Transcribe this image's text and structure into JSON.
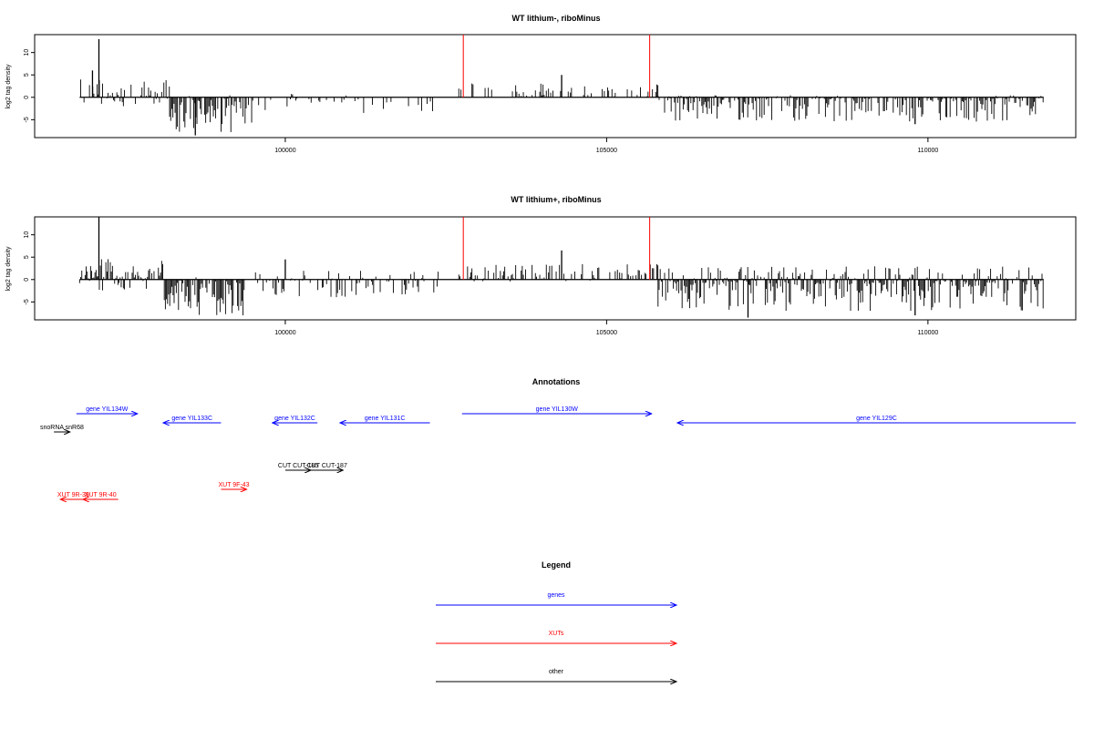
{
  "panels": [
    {
      "title": "WT lithium-, riboMinus",
      "ylabel": "log2 tag density",
      "yticks": [
        "10",
        "5",
        "0",
        "-5"
      ],
      "ylim": [
        -9,
        14
      ],
      "xticks": [
        "100000",
        "105000",
        "110000"
      ],
      "xlim": [
        96100,
        112300
      ],
      "segments": [
        {
          "from": 96800,
          "to": 98200,
          "max": 4,
          "min": -2,
          "density": 0.55
        },
        {
          "from": 98200,
          "to": 99500,
          "max": 0.5,
          "min": -8,
          "density": 0.9
        },
        {
          "from": 99500,
          "to": 102300,
          "max": 1,
          "min": -3.5,
          "density": 0.25
        },
        {
          "from": 102700,
          "to": 105800,
          "max": 3.5,
          "min": 0,
          "density": 0.3
        },
        {
          "from": 105800,
          "to": 111800,
          "max": 0.5,
          "min": -5.5,
          "density": 0.7
        }
      ],
      "peaks": [
        {
          "x": 97100,
          "y": 13
        },
        {
          "x": 97000,
          "y": 6
        },
        {
          "x": 104300,
          "y": 5
        },
        {
          "x": 109800,
          "y": -6
        },
        {
          "x": 98600,
          "y": -8.5
        }
      ],
      "red_lines": [
        {
          "x": 102770,
          "y": 14
        },
        {
          "x": 105670,
          "y": 14
        }
      ]
    },
    {
      "title": "WT lithium+, riboMinus",
      "ylabel": "log2 tag density",
      "yticks": [
        "10",
        "5",
        "0",
        "-5"
      ],
      "ylim": [
        -9,
        14
      ],
      "xticks": [
        "100000",
        "105000",
        "110000"
      ],
      "xlim": [
        96100,
        112300
      ],
      "segments": [
        {
          "from": 96800,
          "to": 98100,
          "max": 5,
          "min": -2.5,
          "density": 0.95
        },
        {
          "from": 98100,
          "to": 99400,
          "max": 0.5,
          "min": -8,
          "density": 0.9
        },
        {
          "from": 99400,
          "to": 102400,
          "max": 2,
          "min": -4,
          "density": 0.45
        },
        {
          "from": 102700,
          "to": 105800,
          "max": 3.5,
          "min": -0.5,
          "density": 0.55
        },
        {
          "from": 105800,
          "to": 111800,
          "max": 3,
          "min": -7,
          "density": 1.0
        }
      ],
      "peaks": [
        {
          "x": 97100,
          "y": 14
        },
        {
          "x": 104300,
          "y": 6.5
        },
        {
          "x": 100000,
          "y": 4.5
        },
        {
          "x": 107200,
          "y": -8.5
        },
        {
          "x": 109800,
          "y": -8
        }
      ],
      "red_lines": [
        {
          "x": 102770,
          "y": 14
        },
        {
          "x": 105670,
          "y": 14
        }
      ]
    }
  ],
  "annotations": {
    "title": "Annotations",
    "features": [
      {
        "label": "gene YIL134W",
        "start": 96750,
        "end": 97700,
        "strand": "+",
        "row": 0,
        "color": "#0000ff"
      },
      {
        "label": "gene YIL133C",
        "start": 98100,
        "end": 99000,
        "strand": "-",
        "row": 1,
        "color": "#0000ff"
      },
      {
        "label": "gene YIL132C",
        "start": 99800,
        "end": 100500,
        "strand": "-",
        "row": 1,
        "color": "#0000ff"
      },
      {
        "label": "gene YIL131C",
        "start": 100850,
        "end": 102250,
        "strand": "-",
        "row": 1,
        "color": "#0000ff"
      },
      {
        "label": "gene YIL130W",
        "start": 102750,
        "end": 105700,
        "strand": "+",
        "row": 0,
        "color": "#0000ff"
      },
      {
        "label": "gene YIL129C",
        "start": 106100,
        "end": 112300,
        "strand": "-",
        "row": 1,
        "color": "#0000ff"
      },
      {
        "label": "snoRNA snR68",
        "start": 96400,
        "end": 96650,
        "strand": "+",
        "row": 2,
        "color": "#000000"
      },
      {
        "label": "CUT CUT-185",
        "start": 100000,
        "end": 100400,
        "strand": "+",
        "row": 3,
        "color": "#000000"
      },
      {
        "label": "CUT CUT-187",
        "start": 100400,
        "end": 100900,
        "strand": "+",
        "row": 3,
        "color": "#000000"
      },
      {
        "label": "XUT 9F-43",
        "start": 99000,
        "end": 99400,
        "strand": "+",
        "row": 4,
        "color": "#ff0000"
      },
      {
        "label": "XUT 9R-39",
        "start": 96500,
        "end": 96900,
        "strand": "-",
        "row": 5,
        "color": "#ff0000"
      },
      {
        "label": "XUT 9R-40",
        "start": 96850,
        "end": 97400,
        "strand": "-",
        "row": 5,
        "color": "#ff0000"
      }
    ]
  },
  "legend": {
    "title": "Legend",
    "items": [
      {
        "label": "genes",
        "color": "#0000ff"
      },
      {
        "label": "XUTs",
        "color": "#ff0000"
      },
      {
        "label": "other",
        "color": "#000000"
      }
    ]
  }
}
